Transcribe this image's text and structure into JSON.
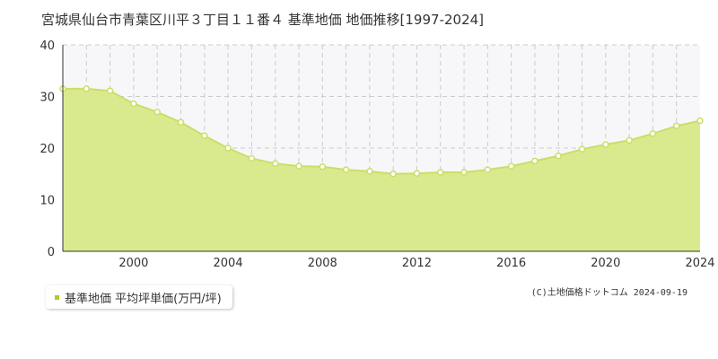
{
  "chart_data": {
    "type": "area",
    "title": "宮城県仙台市青葉区川平３丁目１１番４ 基準地価 地価推移[1997-2024]",
    "x": [
      1997,
      1998,
      1999,
      2000,
      2001,
      2002,
      2003,
      2004,
      2005,
      2006,
      2007,
      2008,
      2009,
      2010,
      2011,
      2012,
      2013,
      2014,
      2015,
      2016,
      2017,
      2018,
      2019,
      2020,
      2021,
      2022,
      2023,
      2024
    ],
    "series": [
      {
        "name": "基準地価 平均坪単価(万円/坪)",
        "values": [
          31.5,
          31.5,
          31.1,
          28.6,
          27.0,
          25.0,
          22.4,
          20.0,
          18.0,
          17.0,
          16.5,
          16.4,
          15.8,
          15.5,
          15.0,
          15.1,
          15.3,
          15.3,
          15.8,
          16.5,
          17.5,
          18.5,
          19.8,
          20.7,
          21.5,
          22.8,
          24.3,
          25.3
        ]
      }
    ],
    "xticks": [
      "2000",
      "2004",
      "2008",
      "2012",
      "2016",
      "2020",
      "2024"
    ],
    "yticks": [
      "0",
      "10",
      "20",
      "30",
      "40"
    ],
    "xlim": [
      1997,
      2024
    ],
    "ylim": [
      0,
      40
    ],
    "grid": true,
    "legend": "bottom-left",
    "colors": {
      "area_fill": "#d9ea8e",
      "line": "#c9df66",
      "point_fill": "#ffffff",
      "legend_swatch": "#a8cc2c",
      "grid": "#cccccc",
      "axis": "#333333",
      "upper_band": "#f7f7f9"
    }
  },
  "credit": "(C)土地価格ドットコム 2024-09-19"
}
